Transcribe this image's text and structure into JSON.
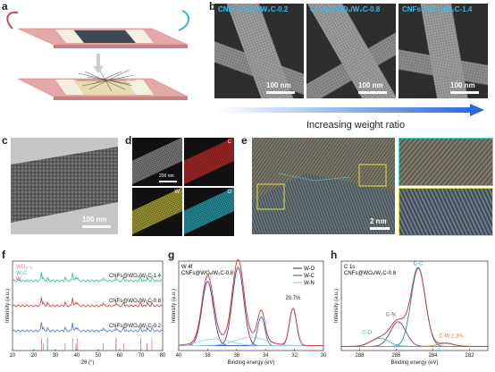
{
  "panels": {
    "a": "a",
    "b": "b",
    "c": "c",
    "d": "d",
    "e": "e",
    "f": "f",
    "g": "g",
    "h": "h"
  },
  "panel_b": {
    "titles": [
      "CNFs@WOₓ/W₂C-0.2",
      "CNFs@WOₓ/W₂C-0.8",
      "CNFs@WOₓ/W₂C-1.4"
    ],
    "scale": "100 nm",
    "arrow_text": "Increasing weight ratio"
  },
  "panel_c": {
    "scale": "100 nm"
  },
  "panel_d": {
    "labels": [
      "",
      "C",
      "W",
      "O"
    ],
    "scale": "200 nm",
    "colors": [
      "#9a9a9a",
      "#d42a2a",
      "#c8c23a",
      "#2ab4c8"
    ]
  },
  "panel_e": {
    "scale": "2 nm"
  },
  "chart_data": [
    {
      "type": "line",
      "panel": "f",
      "xlabel": "2θ (°)",
      "ylabel": "Intensity (a.u.)",
      "xlim": [
        10,
        80
      ],
      "xticks": [
        "10",
        "20",
        "30",
        "40",
        "50",
        "60",
        "70",
        "80"
      ],
      "legend": [
        {
          "name": "WO₂.₇₂",
          "color": "#e07a9a"
        },
        {
          "name": "W₂C",
          "color": "#4bb89a"
        },
        {
          "name": "W",
          "color": "#c05050"
        }
      ],
      "series": [
        {
          "name": "CNFs@WOₓ/W₂C-1.4",
          "color": "#3dbf9d",
          "offset": 0.78
        },
        {
          "name": "CNFs@WOₓ/W₂C-0.8",
          "color": "#d84b4b",
          "offset": 0.5
        },
        {
          "name": "CNFs@WOₓ/W₂C-0.2",
          "color": "#5a7fc9",
          "offset": 0.22
        }
      ],
      "peaks": [
        23.5,
        24.3,
        26.3,
        34.5,
        38.0,
        39.6,
        40.3,
        52.3,
        58.3,
        61.9,
        69.8,
        72.8,
        75.0
      ]
    },
    {
      "type": "line",
      "panel": "g",
      "title": "W 4f",
      "subtitle": "CNFs@WOₓ/W₂C-0.8",
      "xlabel": "Binding energy (eV)",
      "ylabel": "Intensity (a.u.)",
      "xlim": [
        40,
        30
      ],
      "xticks": [
        "40",
        "38",
        "36",
        "34",
        "32",
        "30"
      ],
      "annotation": "20.7%",
      "legend": [
        {
          "name": "W-O",
          "color": "#5a3a8a"
        },
        {
          "name": "W-C",
          "color": "#3a6ec8"
        },
        {
          "name": "W-N",
          "color": "#9ad0e0"
        }
      ],
      "components": [
        {
          "name": "W-O",
          "center": 38.0,
          "height": 0.78,
          "width": 0.55
        },
        {
          "name": "W-O",
          "center": 35.9,
          "height": 0.95,
          "width": 0.55
        },
        {
          "name": "W-C",
          "center": 34.3,
          "height": 0.35,
          "width": 0.35
        },
        {
          "name": "W-C",
          "center": 32.1,
          "height": 0.45,
          "width": 0.35
        },
        {
          "name": "W-N",
          "center": 35.0,
          "height": 0.1,
          "width": 1.5
        },
        {
          "name": "W-N",
          "center": 37.5,
          "height": 0.08,
          "width": 1.5
        }
      ]
    },
    {
      "type": "line",
      "panel": "h",
      "title": "C 1s",
      "subtitle": "CNFs@WOₓ/W₂C-0.8",
      "xlabel": "Binding energy (eV)",
      "ylabel": "Intensity (a.u.)",
      "xlim": [
        289,
        281
      ],
      "xticks": [
        "288",
        "286",
        "284",
        "282"
      ],
      "annotations": [
        {
          "text": "C-C",
          "color": "#2a8ac0"
        },
        {
          "text": "C-N",
          "color": "#7a3a8a"
        },
        {
          "text": "C-O",
          "color": "#3ab89a"
        },
        {
          "text": "C-W 2.3%",
          "color": "#e07a3a"
        }
      ],
      "components": [
        {
          "name": "C-C",
          "center": 284.8,
          "height": 0.95,
          "width": 0.55,
          "color": "#2a8ac0"
        },
        {
          "name": "C-N",
          "center": 285.9,
          "height": 0.3,
          "width": 0.6,
          "color": "#7a3a8a"
        },
        {
          "name": "C-O",
          "center": 286.9,
          "height": 0.1,
          "width": 0.7,
          "color": "#3ab89a"
        },
        {
          "name": "C-W",
          "center": 283.3,
          "height": 0.04,
          "width": 0.6,
          "color": "#e07a3a"
        }
      ]
    }
  ]
}
